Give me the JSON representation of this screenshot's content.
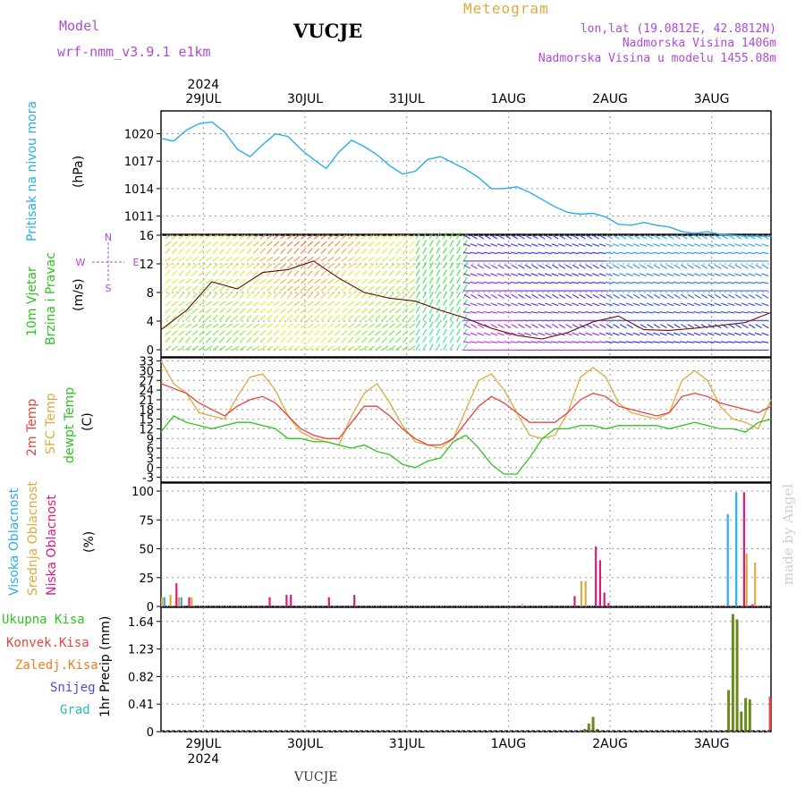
{
  "header": {
    "model_label": "Model",
    "model_name": "wrf-nmm_v3.9.1  e1km",
    "station": "VUCJE",
    "meteogram": "Meteogram",
    "lonlat": "lon,lat (19.0812E, 42.8812N)",
    "altitude": "Nadmorska Visina 1406m",
    "altitude_model": "Nadmorska Visina u modelu 1455.08m",
    "year": "2024",
    "footer_station": "VUCJE",
    "credit": "made by Angel"
  },
  "time_axis": {
    "start": "2024-07-28 14:00",
    "days": [
      "29JUL",
      "30JUL",
      "31JUL",
      "1AUG",
      "2AUG",
      "3AUG"
    ],
    "year": "2024"
  },
  "colors": {
    "pressure": "#29aee8",
    "temp2m": "#e8453c",
    "sfc_temp": "#e0a93c",
    "dewpt": "#2ec41f",
    "vis_high": "#29aee8",
    "srednja": "#e0a93c",
    "niska": "#e0187a",
    "ukupna": "#2ec41f",
    "konvek": "#e8453c",
    "zaledj": "#f07f22",
    "snijeg": "#4b4be8",
    "grad": "#2ab8b8",
    "precip_bar": "#6b8a1e",
    "wind_black": "#000000"
  },
  "chart_data": [
    {
      "type": "line",
      "panel": "pressure",
      "ylabel_main": "Pritisak na nivou mora",
      "unit": "(hPa)",
      "yticks": [
        1011,
        1014,
        1017,
        1020
      ],
      "ylim": [
        1009,
        1022.5
      ],
      "grid": true,
      "series": [
        {
          "name": "",
          "x_hours": [
            0,
            3,
            6,
            9,
            12,
            15,
            18,
            21,
            24,
            27,
            30,
            33,
            36,
            39,
            42,
            45,
            48,
            51,
            54,
            57,
            60,
            63,
            66,
            69,
            72,
            75,
            78,
            81,
            84,
            87,
            90,
            93,
            96,
            99,
            102,
            105,
            108,
            111,
            114,
            117,
            120,
            123,
            126,
            129,
            132,
            135,
            138,
            141,
            144
          ],
          "values": [
            1019.5,
            1019.2,
            1020.4,
            1021.1,
            1021.3,
            1020.2,
            1018.3,
            1017.5,
            1018.8,
            1020.0,
            1019.7,
            1018.3,
            1017.2,
            1016.2,
            1018.0,
            1019.3,
            1018.6,
            1017.7,
            1016.5,
            1015.6,
            1015.9,
            1017.2,
            1017.5,
            1016.8,
            1016.1,
            1015.2,
            1014.0,
            1014.0,
            1014.2,
            1013.6,
            1012.8,
            1012.0,
            1011.4,
            1011.2,
            1011.3,
            1010.9,
            1010.1,
            1010.0,
            1010.3,
            1010.0,
            1009.8,
            1009.3,
            1009.1,
            1009.3,
            1009.0,
            1008.9,
            1008.8,
            1008.8,
            1008.8
          ]
        }
      ]
    },
    {
      "type": "line",
      "panel": "wind",
      "ylabel_main": "10m Vjetar",
      "ylabel_sub": "Brzina i Pravac",
      "unit": "(m/s)",
      "compass": [
        "N",
        "E",
        "S",
        "W"
      ],
      "yticks": [
        0,
        4,
        8,
        12,
        16
      ],
      "ylim": [
        -1,
        16
      ],
      "grid": true,
      "series": [
        {
          "name": "",
          "x_hours": [
            0,
            6,
            12,
            18,
            24,
            30,
            36,
            42,
            48,
            54,
            60,
            66,
            72,
            78,
            84,
            90,
            96,
            102,
            108,
            114,
            120,
            126,
            132,
            138,
            144
          ],
          "values": [
            2.8,
            5.5,
            9.5,
            8.5,
            10.8,
            11.2,
            12.4,
            10.0,
            8.0,
            7.2,
            6.8,
            5.5,
            4.4,
            3.0,
            2.0,
            1.5,
            2.4,
            3.9,
            4.7,
            2.8,
            2.7,
            3.0,
            3.4,
            3.8,
            5.2
          ]
        }
      ]
    },
    {
      "type": "line",
      "panel": "temperature",
      "legend_labels": [
        "2m Temp",
        "SFC Temp",
        "dewpt Temp"
      ],
      "unit": "(C)",
      "yticks": [
        -3,
        0,
        3,
        6,
        9,
        12,
        15,
        18,
        21,
        24,
        27,
        30,
        33
      ],
      "ylim": [
        -4.5,
        34
      ],
      "grid": true,
      "series": [
        {
          "name": "2m Temp",
          "x_hours": [
            0,
            3,
            6,
            9,
            12,
            15,
            18,
            21,
            24,
            27,
            30,
            33,
            36,
            39,
            42,
            45,
            48,
            51,
            54,
            57,
            60,
            63,
            66,
            69,
            72,
            75,
            78,
            81,
            84,
            87,
            90,
            93,
            96,
            99,
            102,
            105,
            108,
            111,
            114,
            117,
            120,
            123,
            126,
            129,
            132,
            135,
            138,
            141,
            144
          ],
          "values": [
            26,
            24.5,
            23,
            20,
            18,
            16,
            19,
            21,
            22,
            20,
            16,
            12,
            10,
            9,
            9,
            14,
            19,
            19,
            16,
            12,
            9,
            7,
            7,
            9,
            14,
            19,
            22,
            20,
            17,
            14,
            14,
            14,
            17,
            21,
            23,
            22,
            19,
            18,
            17,
            16,
            17,
            22,
            23,
            22,
            20,
            19,
            18,
            17,
            19
          ]
        },
        {
          "name": "SFC Temp",
          "x_hours": [
            0,
            3,
            6,
            9,
            12,
            15,
            18,
            21,
            24,
            27,
            30,
            33,
            36,
            39,
            42,
            45,
            48,
            51,
            54,
            57,
            60,
            63,
            66,
            69,
            72,
            75,
            78,
            81,
            84,
            87,
            90,
            93,
            96,
            99,
            102,
            105,
            108,
            111,
            114,
            117,
            120,
            123,
            126,
            129,
            132,
            135,
            138,
            141,
            144
          ],
          "values": [
            33,
            26,
            23,
            17,
            16,
            15,
            22,
            28,
            29,
            24,
            16,
            11,
            9,
            8,
            7,
            16,
            23,
            26,
            20,
            13,
            8,
            7,
            6,
            9,
            18,
            27,
            29,
            24,
            17,
            10,
            9,
            10,
            17,
            28,
            31,
            28,
            20,
            17,
            16,
            15,
            17,
            27,
            30,
            27,
            19,
            15,
            14,
            12,
            21
          ]
        },
        {
          "name": "dewpt Temp",
          "x_hours": [
            0,
            3,
            6,
            9,
            12,
            15,
            18,
            21,
            24,
            27,
            30,
            33,
            36,
            39,
            42,
            45,
            48,
            51,
            54,
            57,
            60,
            63,
            66,
            69,
            72,
            75,
            78,
            81,
            84,
            87,
            90,
            93,
            96,
            99,
            102,
            105,
            108,
            111,
            114,
            117,
            120,
            123,
            126,
            129,
            132,
            135,
            138,
            141,
            144
          ],
          "values": [
            11,
            16,
            14,
            13,
            12,
            13,
            14,
            14,
            13,
            12,
            9,
            9,
            8,
            8,
            7,
            6,
            7,
            5,
            4,
            1,
            0,
            2,
            3,
            8,
            10,
            6,
            1,
            -2,
            -2,
            3,
            9,
            12,
            12,
            13,
            13,
            12,
            13,
            13,
            13,
            13,
            12,
            13,
            14,
            13,
            12,
            12,
            11,
            14,
            15
          ]
        }
      ]
    },
    {
      "type": "bar",
      "panel": "clouds",
      "legend_labels": [
        "Visoka Oblacnost",
        "Srednja Oblacnost",
        "Niska Oblacnost"
      ],
      "unit": "(%)",
      "yticks": [
        0,
        25,
        50,
        75,
        100
      ],
      "ylim": [
        0,
        107
      ],
      "grid": true,
      "series": [
        {
          "name": "Visoka Oblacnost",
          "x_hours": [
            1,
            5,
            92,
            134,
            136
          ],
          "values": [
            8,
            8,
            1,
            80,
            99
          ]
        },
        {
          "name": "Srednja Oblacnost",
          "x_hours": [
            0,
            2,
            4,
            7,
            85,
            99,
            100,
            138,
            140
          ],
          "values": [
            8,
            10,
            8,
            8,
            2,
            22,
            22,
            46,
            38
          ]
        },
        {
          "name": "Niska Oblacnost",
          "x_hours": [
            3,
            6,
            25,
            29,
            30,
            39,
            45,
            97,
            102,
            103,
            104,
            105,
            137,
            139
          ],
          "values": [
            20,
            8,
            8,
            10,
            10,
            8,
            10,
            9,
            52,
            40,
            12,
            3,
            99,
            2
          ]
        }
      ]
    },
    {
      "type": "bar",
      "panel": "precip",
      "legend_labels": [
        "Ukupna  Kisa",
        "Konvek.Kisa",
        "Zaledj.Kisa",
        "Snijeg",
        "Grad"
      ],
      "unit": "1hr Precip (mm)",
      "yticks": [
        0,
        0.41,
        0.82,
        1.23,
        1.64
      ],
      "ylim": [
        0,
        1.85
      ],
      "grid": true,
      "series": [
        {
          "name": "Ukupna  Kisa",
          "x_hours": [
            100,
            101,
            102,
            103,
            134,
            135,
            136,
            137,
            138,
            139
          ],
          "values": [
            0.04,
            0.12,
            0.22,
            0.04,
            0.62,
            1.75,
            1.67,
            0.3,
            0.5,
            0.48
          ]
        }
      ]
    }
  ]
}
